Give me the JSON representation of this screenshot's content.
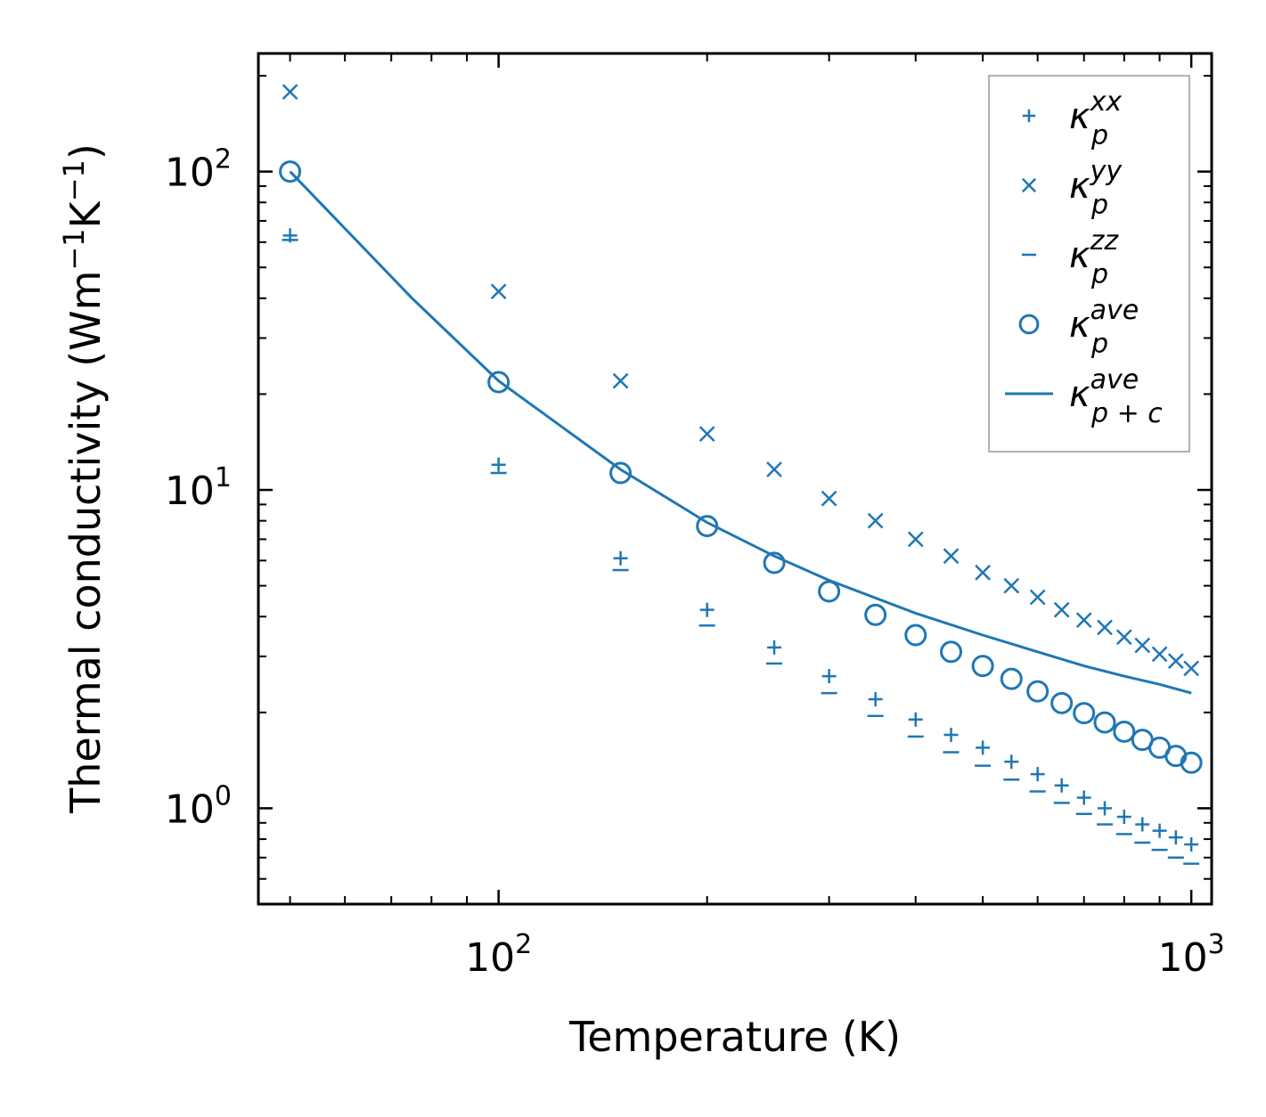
{
  "chart_data": {
    "type": "scatter",
    "xscale": "log",
    "yscale": "log",
    "xlabel": "Temperature (K)",
    "ylabel_parts": {
      "text": "Thermal conductivity (Wm",
      "sup1": "−1",
      "mid": "K",
      "sup2": "−1",
      "end": ")"
    },
    "xlim": [
      45,
      1070
    ],
    "ylim": [
      0.5,
      235
    ],
    "x_ticks": [
      {
        "value": 100,
        "base": "10",
        "exp": "2"
      },
      {
        "value": 1000,
        "base": "10",
        "exp": "3"
      }
    ],
    "y_ticks": [
      {
        "value": 1,
        "base": "10",
        "exp": "0"
      },
      {
        "value": 10,
        "base": "10",
        "exp": "1"
      },
      {
        "value": 100,
        "base": "10",
        "exp": "2"
      }
    ],
    "color": "#1f77b4",
    "series": [
      {
        "name": "kappa_p_xx",
        "marker": "plus",
        "x": [
          50,
          100,
          150,
          200,
          250,
          300,
          350,
          400,
          450,
          500,
          550,
          600,
          650,
          700,
          750,
          800,
          850,
          900,
          950,
          1000
        ],
        "y": [
          63,
          12,
          6.1,
          4.2,
          3.2,
          2.6,
          2.2,
          1.9,
          1.7,
          1.55,
          1.4,
          1.28,
          1.18,
          1.08,
          1.0,
          0.94,
          0.89,
          0.85,
          0.81,
          0.77
        ]
      },
      {
        "name": "kappa_p_yy",
        "marker": "x",
        "x": [
          50,
          100,
          150,
          200,
          250,
          300,
          350,
          400,
          450,
          500,
          550,
          600,
          650,
          700,
          750,
          800,
          850,
          900,
          950,
          1000
        ],
        "y": [
          178,
          42,
          22,
          15,
          11.6,
          9.4,
          8.0,
          7.0,
          6.2,
          5.5,
          5.0,
          4.6,
          4.2,
          3.9,
          3.7,
          3.45,
          3.25,
          3.05,
          2.9,
          2.75
        ]
      },
      {
        "name": "kappa_p_zz",
        "marker": "minus",
        "x": [
          50,
          100,
          150,
          200,
          250,
          300,
          350,
          400,
          450,
          500,
          550,
          600,
          650,
          700,
          750,
          800,
          850,
          900,
          950,
          1000
        ],
        "y": [
          61,
          11.3,
          5.6,
          3.75,
          2.85,
          2.3,
          1.95,
          1.68,
          1.5,
          1.36,
          1.23,
          1.13,
          1.04,
          0.96,
          0.89,
          0.83,
          0.78,
          0.74,
          0.7,
          0.67
        ]
      },
      {
        "name": "kappa_p_ave",
        "marker": "circle",
        "x": [
          50,
          100,
          150,
          200,
          250,
          300,
          350,
          400,
          450,
          500,
          550,
          600,
          650,
          700,
          750,
          800,
          850,
          900,
          950,
          1000
        ],
        "y": [
          100,
          21.8,
          11.3,
          7.7,
          5.9,
          4.8,
          4.05,
          3.5,
          3.1,
          2.8,
          2.55,
          2.33,
          2.14,
          1.99,
          1.86,
          1.74,
          1.64,
          1.55,
          1.46,
          1.39
        ]
      },
      {
        "name": "kappa_p_plus_c_ave",
        "marker": "line",
        "x": [
          50,
          75,
          100,
          150,
          200,
          250,
          300,
          400,
          500,
          600,
          700,
          800,
          900,
          1000
        ],
        "y": [
          100,
          40,
          22,
          11.6,
          7.9,
          6.2,
          5.2,
          4.1,
          3.5,
          3.1,
          2.8,
          2.6,
          2.45,
          2.3
        ]
      }
    ],
    "legend": {
      "position": "top-right",
      "entries": [
        {
          "base": "κ",
          "sup": "xx",
          "sub": "p"
        },
        {
          "base": "κ",
          "sup": "yy",
          "sub": "p"
        },
        {
          "base": "κ",
          "sup": "zz",
          "sub": "p"
        },
        {
          "base": "κ",
          "sup": "ave",
          "sub": "p"
        },
        {
          "base": "κ",
          "sup": "ave",
          "sub": "p + c"
        }
      ]
    }
  }
}
